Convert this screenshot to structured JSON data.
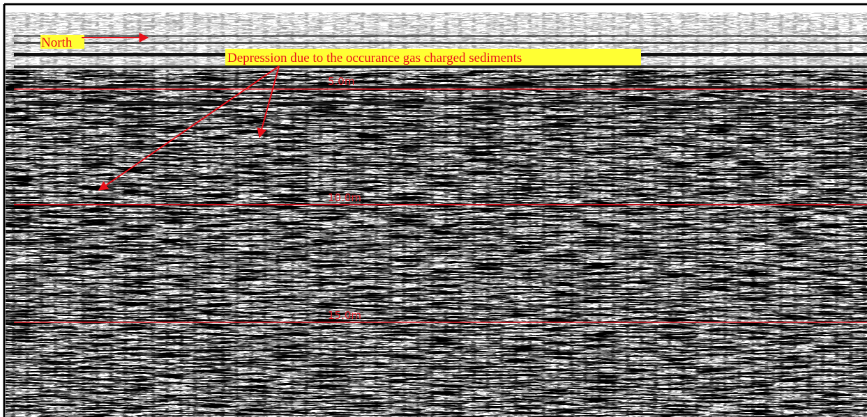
{
  "annotations": {
    "north": "North",
    "depression": "Depression due to the occurance gas charged sediments"
  },
  "depth_lines": [
    {
      "label": "5.0m"
    },
    {
      "label": "10.0m"
    },
    {
      "label": "15.0m"
    }
  ]
}
